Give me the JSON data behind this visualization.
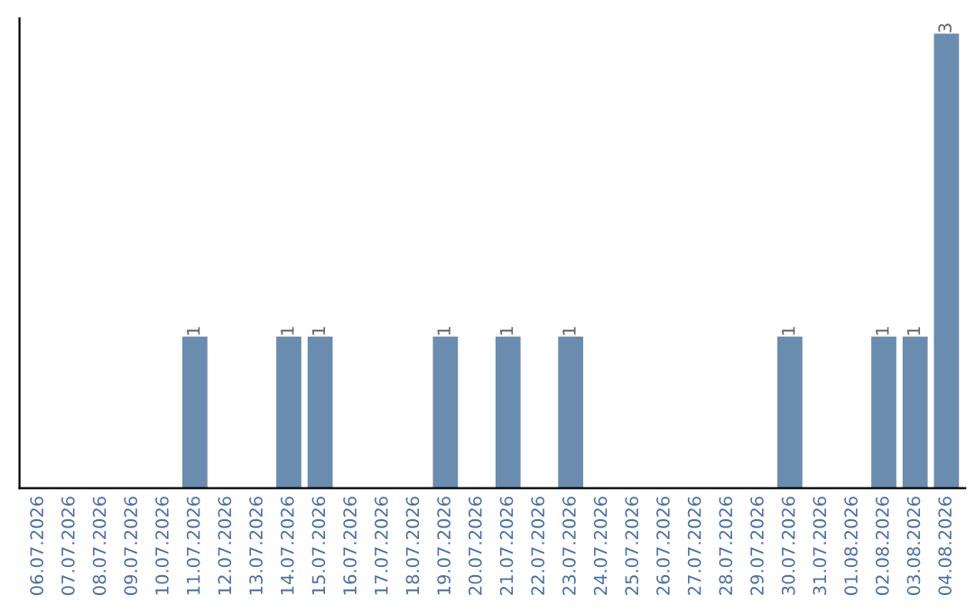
{
  "chart_data": {
    "type": "bar",
    "categories": [
      "06.07.2026",
      "07.07.2026",
      "08.07.2026",
      "09.07.2026",
      "10.07.2026",
      "11.07.2026",
      "12.07.2026",
      "13.07.2026",
      "14.07.2026",
      "15.07.2026",
      "16.07.2026",
      "17.07.2026",
      "18.07.2026",
      "19.07.2026",
      "20.07.2026",
      "21.07.2026",
      "22.07.2026",
      "23.07.2026",
      "24.07.2026",
      "25.07.2026",
      "26.07.2026",
      "27.07.2026",
      "28.07.2026",
      "29.07.2026",
      "30.07.2026",
      "31.07.2026",
      "01.08.2026",
      "02.08.2026",
      "03.08.2026",
      "04.08.2026"
    ],
    "values": [
      0,
      0,
      0,
      0,
      0,
      1,
      0,
      0,
      1,
      1,
      0,
      0,
      0,
      1,
      0,
      1,
      0,
      1,
      0,
      0,
      0,
      0,
      0,
      0,
      1,
      0,
      0,
      1,
      1,
      3
    ],
    "value_labels": [
      null,
      null,
      null,
      null,
      null,
      "1",
      null,
      null,
      "1",
      "1",
      null,
      null,
      null,
      "1",
      null,
      "1",
      null,
      "1",
      null,
      null,
      null,
      null,
      null,
      null,
      "1",
      null,
      null,
      "1",
      "1",
      "3"
    ],
    "color": "#6a8caf",
    "ylim": [
      0,
      3.1
    ],
    "grid": false,
    "legend": false
  }
}
